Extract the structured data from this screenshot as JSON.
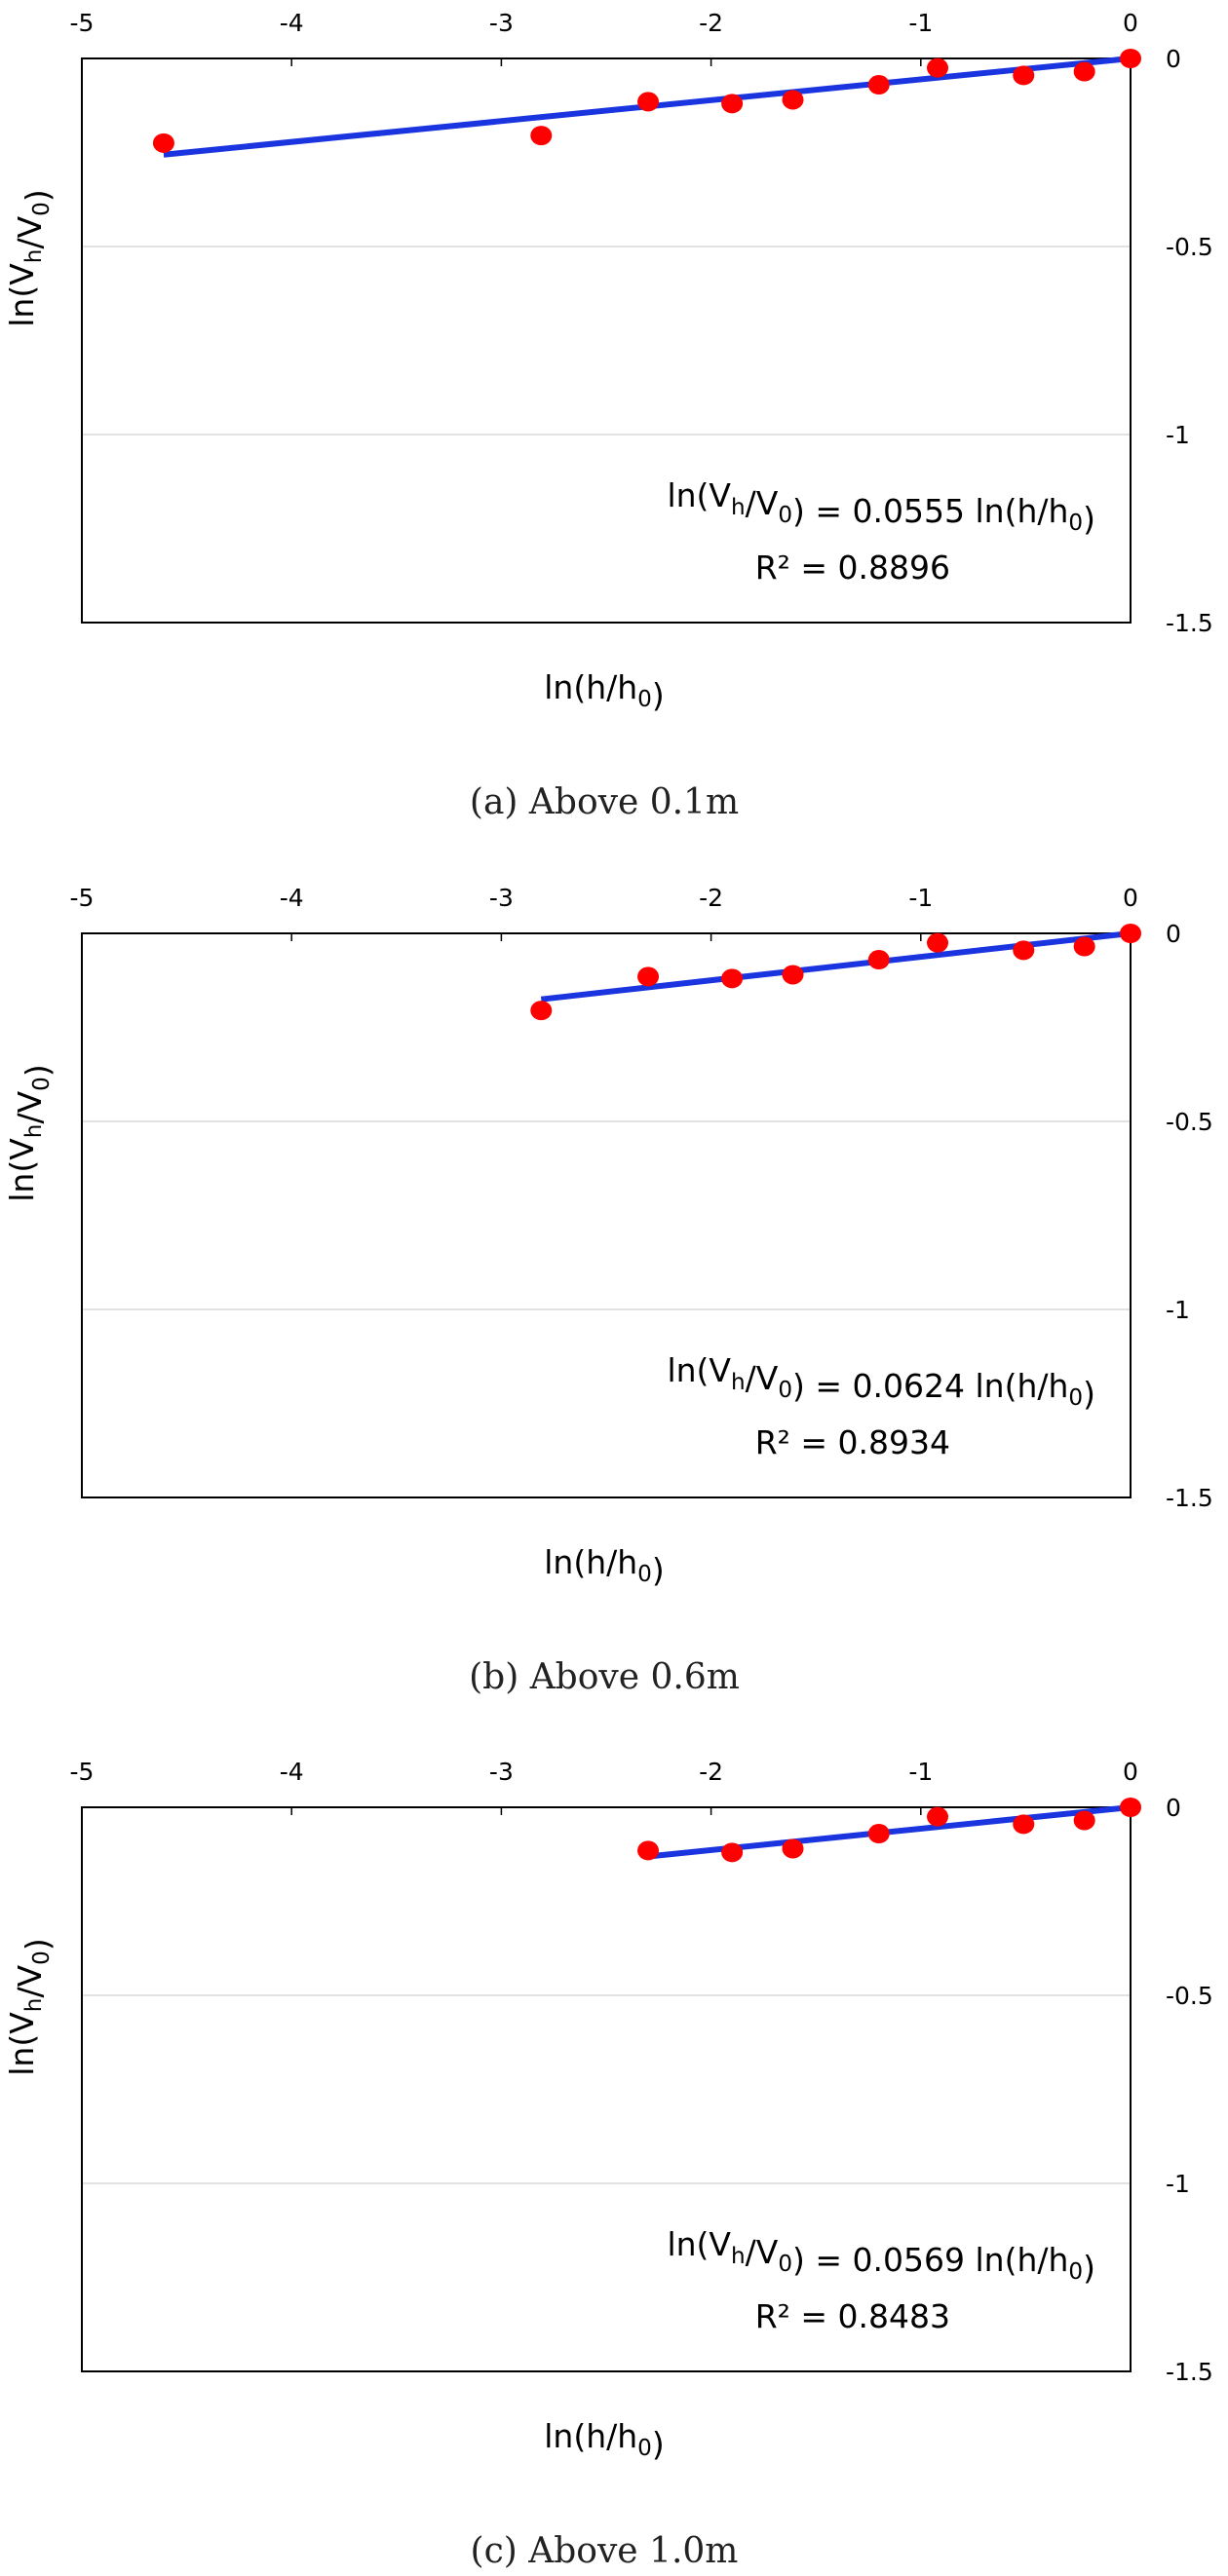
{
  "chart_data": [
    {
      "type": "scatter",
      "caption": "(a) Above 0.1m",
      "xlabel": "ln(h/h0)",
      "ylabel": "ln(Vh/V0)",
      "xlim": [
        -5,
        0
      ],
      "ylim": [
        -1.5,
        0
      ],
      "x_ticks": [
        "-5",
        "-4",
        "-3",
        "-2",
        "-1",
        "0"
      ],
      "y_ticks": [
        "0",
        "-0.5",
        "-1",
        "-1.5"
      ],
      "grid": "horizontal",
      "marker_color": "#ff0000",
      "line_color": "#1a34e0",
      "points": {
        "x": [
          -4.61,
          -2.81,
          -2.3,
          -1.9,
          -1.61,
          -1.2,
          -0.92,
          -0.51,
          -0.22,
          0.0
        ],
        "y": [
          -0.225,
          -0.205,
          -0.115,
          -0.12,
          -0.11,
          -0.07,
          -0.025,
          -0.045,
          -0.035,
          0.0
        ]
      },
      "fit": {
        "slope": 0.0555,
        "x_from": -4.61,
        "x_to": 0
      },
      "equation": {
        "lhs": "ln(Vh/V0)",
        "eq": "=",
        "rhs": "0.0555 ln(h/h0)"
      },
      "r2": {
        "label": "R² =",
        "value": "0.8896"
      }
    },
    {
      "type": "scatter",
      "caption": "(b) Above 0.6m",
      "xlabel": "ln(h/h0)",
      "ylabel": "ln(Vh/V0)",
      "xlim": [
        -5,
        0
      ],
      "ylim": [
        -1.5,
        0
      ],
      "x_ticks": [
        "-5",
        "-4",
        "-3",
        "-2",
        "-1",
        "0"
      ],
      "y_ticks": [
        "0",
        "-0.5",
        "-1",
        "-1.5"
      ],
      "grid": "horizontal",
      "marker_color": "#ff0000",
      "line_color": "#1a34e0",
      "points": {
        "x": [
          -2.81,
          -2.3,
          -1.9,
          -1.61,
          -1.2,
          -0.92,
          -0.51,
          -0.22,
          0.0
        ],
        "y": [
          -0.205,
          -0.115,
          -0.12,
          -0.11,
          -0.07,
          -0.025,
          -0.045,
          -0.035,
          0.0
        ]
      },
      "fit": {
        "slope": 0.0624,
        "x_from": -2.81,
        "x_to": 0
      },
      "equation": {
        "lhs": "ln(Vh/V0)",
        "eq": "=",
        "rhs": "0.0624 ln(h/h0)"
      },
      "r2": {
        "label": "R² =",
        "value": "0.8934"
      }
    },
    {
      "type": "scatter",
      "caption": "(c) Above 1.0m",
      "xlabel": "ln(h/h0)",
      "ylabel": "ln(Vh/V0)",
      "xlim": [
        -5,
        0
      ],
      "ylim": [
        -1.5,
        0
      ],
      "x_ticks": [
        "-5",
        "-4",
        "-3",
        "-2",
        "-1",
        "0"
      ],
      "y_ticks": [
        "0",
        "-0.5",
        "-1",
        "-1.5"
      ],
      "grid": "horizontal",
      "marker_color": "#ff0000",
      "line_color": "#1a34e0",
      "points": {
        "x": [
          -2.3,
          -1.9,
          -1.61,
          -1.2,
          -0.92,
          -0.51,
          -0.22,
          0.0
        ],
        "y": [
          -0.115,
          -0.12,
          -0.11,
          -0.07,
          -0.025,
          -0.045,
          -0.035,
          0.0
        ]
      },
      "fit": {
        "slope": 0.0569,
        "x_from": -2.3,
        "x_to": 0
      },
      "equation": {
        "lhs": "ln(Vh/V0)",
        "eq": "=",
        "rhs": "0.0569 ln(h/h0)"
      },
      "r2": {
        "label": "R² =",
        "value": "0.8483"
      }
    }
  ]
}
